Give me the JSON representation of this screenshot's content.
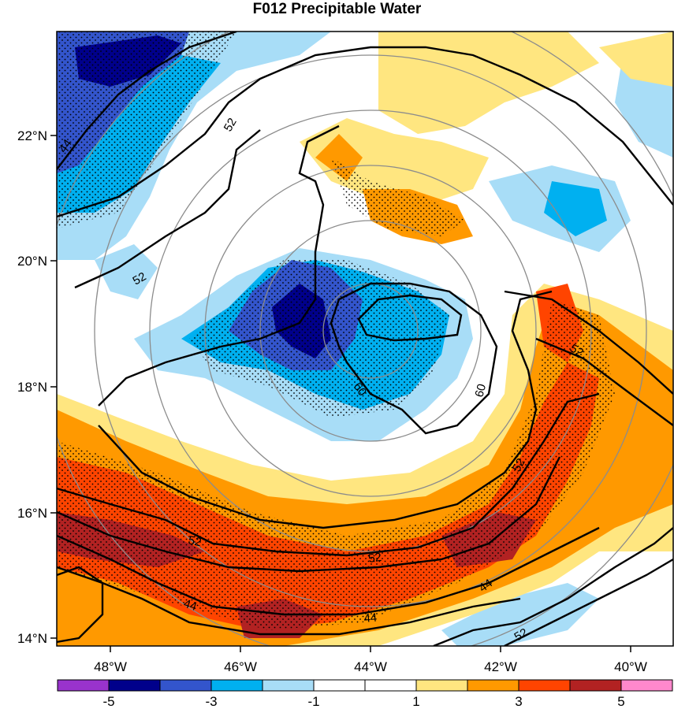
{
  "title": "F012 Precipitable Water",
  "axes": {
    "lat_ticks": [
      "22°N",
      "20°N",
      "18°N",
      "16°N",
      "14°N"
    ],
    "lon_ticks": [
      "48°W",
      "46°W",
      "44°W",
      "42°W",
      "40°W"
    ]
  },
  "contour_labels": [
    "44",
    "52",
    "52",
    "60",
    "60",
    "52",
    "52",
    "52",
    "52",
    "44",
    "44",
    "44",
    "52"
  ],
  "colorbar": {
    "tick_labels": [
      "-5",
      "-3",
      "-1",
      "1",
      "3",
      "5"
    ],
    "colors": [
      "#9933cc",
      "#00008b",
      "#3355cc",
      "#00b0f0",
      "#a8ddf7",
      "#ffffff",
      "#ffffff",
      "#ffe680",
      "#ff9900",
      "#ff4400",
      "#b22222",
      "#ff88cc"
    ]
  }
}
